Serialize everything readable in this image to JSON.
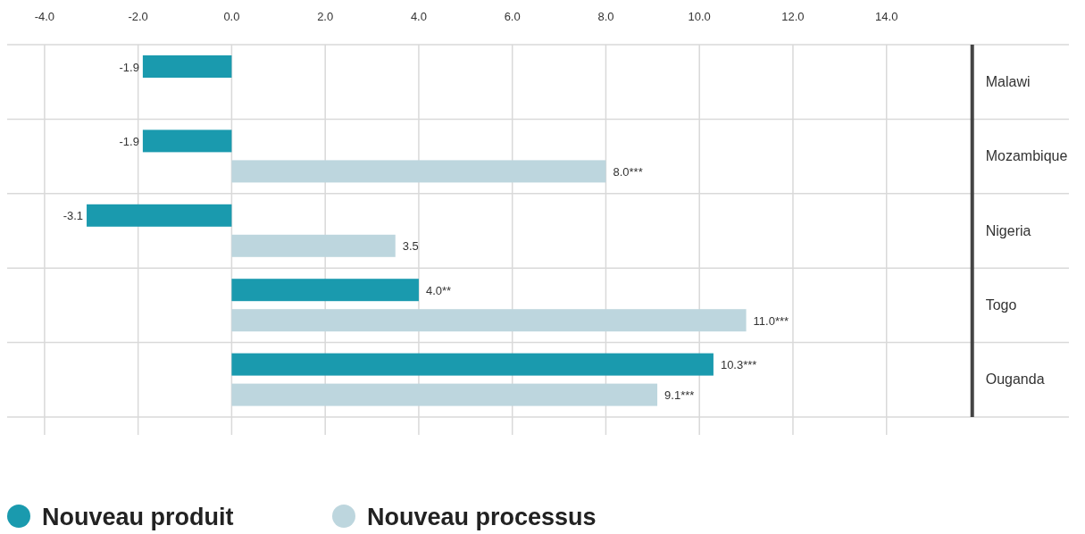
{
  "chart_data": {
    "type": "bar",
    "orientation": "horizontal",
    "categories": [
      "Malawi",
      "Mozambique",
      "Nigeria",
      "Togo",
      "Ouganda"
    ],
    "series": [
      {
        "name": "Nouveau produit",
        "color": "#1a9aae",
        "values": [
          -1.9,
          -1.9,
          -3.1,
          4.0,
          10.3
        ],
        "value_labels": [
          "-1.9",
          "-1.9",
          "-3.1",
          "4.0**",
          "10.3***"
        ]
      },
      {
        "name": "Nouveau processus",
        "color": "#bdd6de",
        "values": [
          null,
          8.0,
          3.5,
          11.0,
          9.1
        ],
        "value_labels": [
          null,
          "8.0***",
          "3.5",
          "11.0***",
          "9.1***"
        ]
      }
    ],
    "xlim": [
      -4.8,
      17.9
    ],
    "xticks": [
      {
        "value": -4,
        "label": "-4.0"
      },
      {
        "value": -2,
        "label": "-2.0"
      },
      {
        "value": 0,
        "label": "0.0"
      },
      {
        "value": 2,
        "label": "2.0"
      },
      {
        "value": 4,
        "label": "4.0"
      },
      {
        "value": 6,
        "label": "6.0"
      },
      {
        "value": 8,
        "label": "8.0"
      },
      {
        "value": 10,
        "label": "10.0"
      },
      {
        "value": 12,
        "label": "12.0"
      },
      {
        "value": 14,
        "label": "14.0"
      }
    ],
    "grid": "x",
    "legend": "bottom left"
  }
}
